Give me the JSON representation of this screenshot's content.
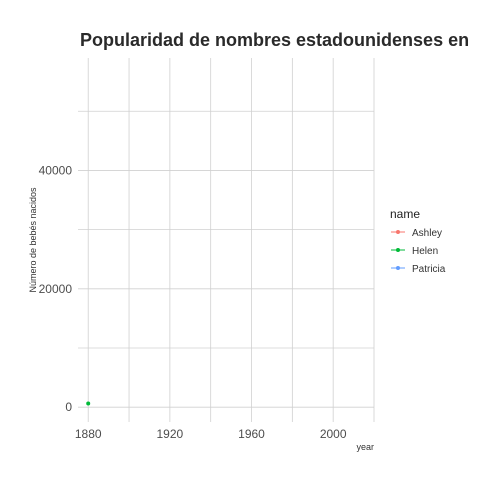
{
  "chart_data": {
    "type": "line",
    "title": "Popularidad de nombres estadounidenses en",
    "xlabel": "year",
    "ylabel": "Número de bebés nacidos",
    "x_ticks": [
      1880,
      1920,
      1960,
      2000
    ],
    "y_ticks": [
      0,
      20000,
      40000
    ],
    "xlim": [
      1875,
      2020
    ],
    "ylim": [
      -2500,
      59000
    ],
    "grid": true,
    "legend": {
      "title": "name",
      "position": "right"
    },
    "series": [
      {
        "name": "Ashley",
        "color": "#F8766D",
        "points": []
      },
      {
        "name": "Helen",
        "color": "#00BA38",
        "points": [
          [
            1880,
            636
          ]
        ]
      },
      {
        "name": "Patricia",
        "color": "#619CFF",
        "points": []
      }
    ]
  }
}
